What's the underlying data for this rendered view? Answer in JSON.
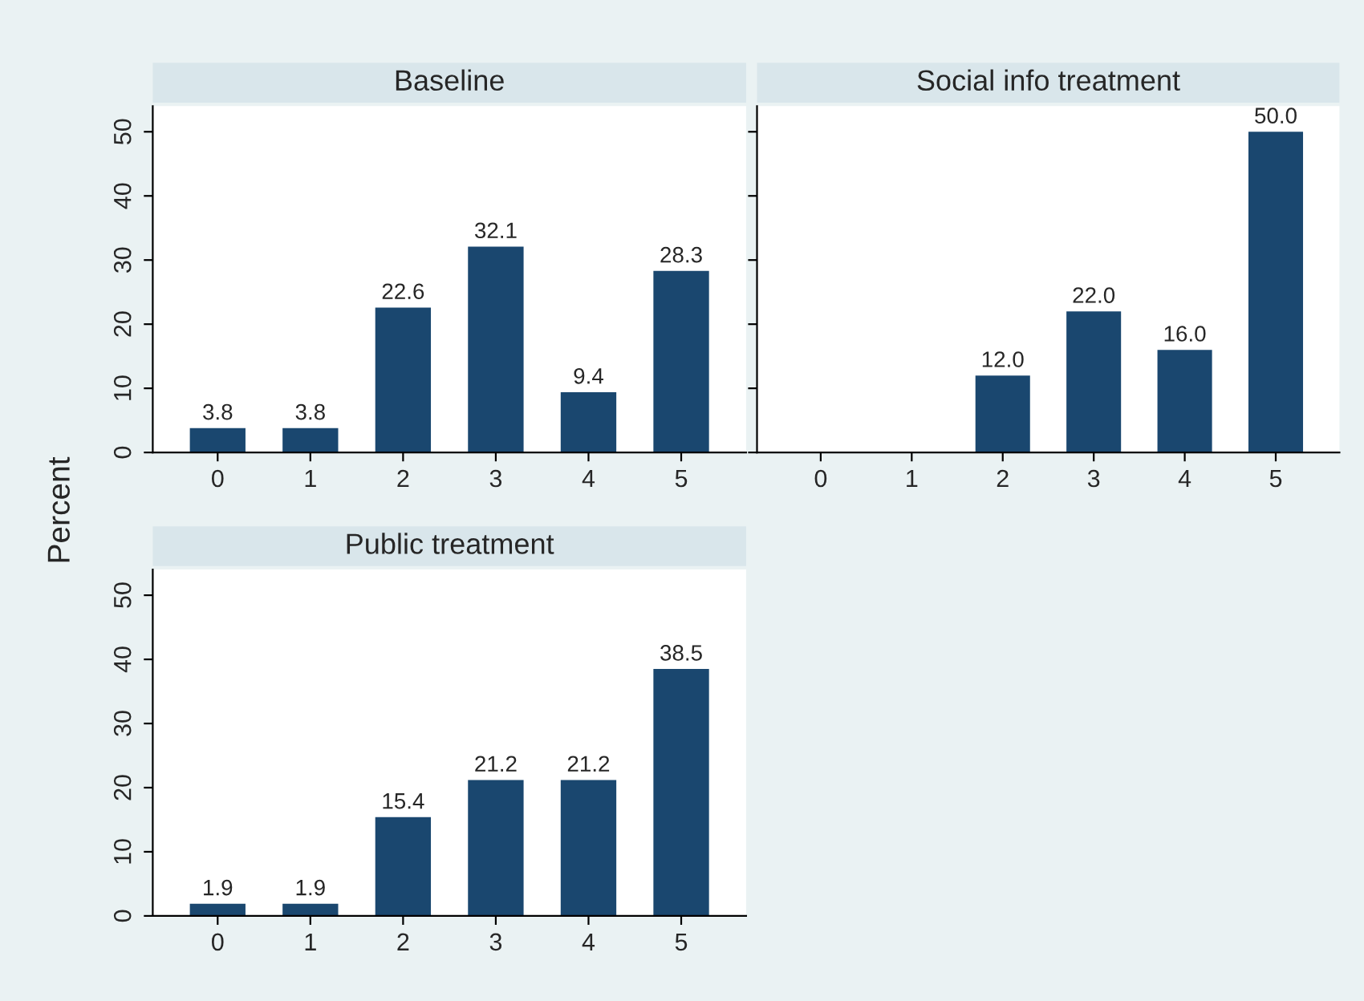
{
  "chart_data": [
    {
      "type": "bar",
      "title": "Baseline",
      "ylabel": "Percent",
      "categories": [
        "0",
        "1",
        "2",
        "3",
        "4",
        "5"
      ],
      "values": [
        3.8,
        3.8,
        22.6,
        32.1,
        9.4,
        28.3
      ],
      "value_labels": [
        "3.8",
        "3.8",
        "22.6",
        "32.1",
        "9.4",
        "28.3"
      ],
      "color": "#1a476f",
      "ylim": [
        0,
        54
      ],
      "yticks": [
        0,
        10,
        20,
        30,
        40,
        50
      ],
      "grid": false
    },
    {
      "type": "bar",
      "title": "Social info treatment",
      "categories": [
        "0",
        "1",
        "2",
        "3",
        "4",
        "5"
      ],
      "values": [
        null,
        null,
        12.0,
        22.0,
        16.0,
        50.0
      ],
      "value_labels": [
        null,
        null,
        "12.0",
        "22.0",
        "16.0",
        "50.0"
      ],
      "color": "#1a476f",
      "ylim": [
        0,
        54
      ],
      "yticks": [
        0,
        10,
        20,
        30,
        40,
        50
      ],
      "grid": false,
      "tick_labels": "x"
    },
    {
      "type": "bar",
      "title": "Public treatment",
      "categories": [
        "0",
        "1",
        "2",
        "3",
        "4",
        "5"
      ],
      "values": [
        1.9,
        1.9,
        15.4,
        21.2,
        21.2,
        38.5
      ],
      "value_labels": [
        "1.9",
        "1.9",
        "15.4",
        "21.2",
        "21.2",
        "38.5"
      ],
      "color": "#1a476f",
      "ylim": [
        0,
        54
      ],
      "yticks": [
        0,
        10,
        20,
        30,
        40,
        50
      ],
      "grid": false
    }
  ]
}
